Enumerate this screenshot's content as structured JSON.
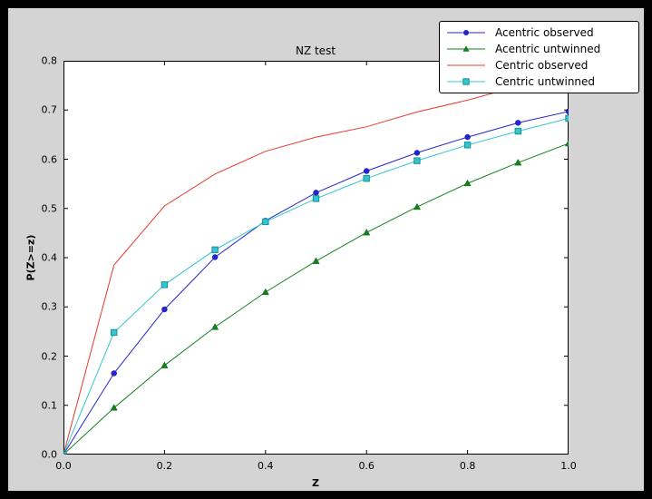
{
  "window": {
    "background": "#000000"
  },
  "figure": {
    "background": "#d4d4d4"
  },
  "chart_data": {
    "type": "line",
    "title": "NZ test",
    "xlabel": "Z",
    "ylabel": "P(Z>=z)",
    "xlim": [
      0,
      1.0
    ],
    "ylim": [
      0,
      0.8
    ],
    "xticks": [
      0.0,
      0.2,
      0.4,
      0.6,
      0.8,
      1.0
    ],
    "yticks": [
      0.0,
      0.1,
      0.2,
      0.3,
      0.4,
      0.5,
      0.6,
      0.7,
      0.8
    ],
    "grid": false,
    "legend_position": "upper right",
    "x": [
      0,
      0.1,
      0.2,
      0.3,
      0.4,
      0.5,
      0.6,
      0.7,
      0.8,
      0.9,
      1.0
    ],
    "series": [
      {
        "name": "Acentric observed",
        "color": "#2525cf",
        "marker": "circle",
        "marker_edge": "#1a1a9e",
        "values": [
          0,
          0.165,
          0.295,
          0.401,
          0.475,
          0.532,
          0.576,
          0.613,
          0.645,
          0.674,
          0.697
        ]
      },
      {
        "name": "Acentric untwinned",
        "color": "#12831c",
        "marker": "triangle",
        "marker_edge": "#0c5c14",
        "values": [
          0,
          0.095,
          0.181,
          0.259,
          0.33,
          0.393,
          0.451,
          0.503,
          0.551,
          0.593,
          0.632
        ]
      },
      {
        "name": "Centric observed",
        "color": "#e8392c",
        "marker": "none",
        "marker_edge": "#e8392c",
        "values": [
          0,
          0.385,
          0.505,
          0.57,
          0.616,
          0.645,
          0.666,
          0.696,
          0.72,
          0.748,
          0.775
        ]
      },
      {
        "name": "Centric untwinned",
        "color": "#33c6cf",
        "marker": "square",
        "marker_edge": "#1a8f96",
        "values": [
          0,
          0.248,
          0.345,
          0.416,
          0.473,
          0.52,
          0.561,
          0.597,
          0.629,
          0.657,
          0.683
        ]
      }
    ]
  }
}
